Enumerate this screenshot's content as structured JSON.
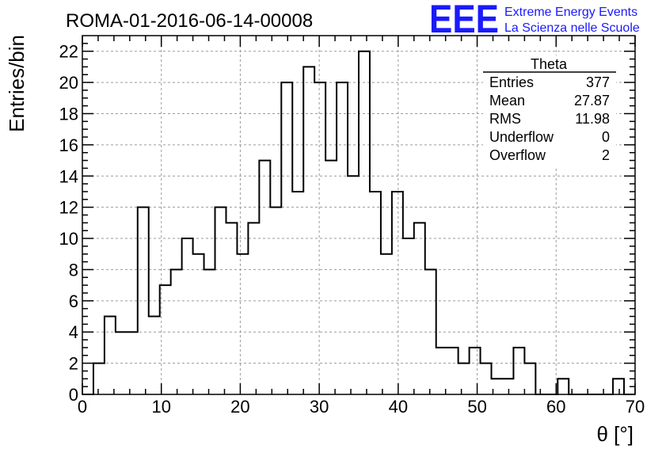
{
  "chart_data": {
    "type": "bar",
    "title": "ROMA-01-2016-06-14-00008",
    "xlabel": "θ [°]",
    "ylabel": "Entries/bin",
    "xlim": [
      0,
      70
    ],
    "ylim": [
      0,
      23
    ],
    "grid": true,
    "bin_width": 1.4,
    "x_ticks": [
      0,
      10,
      20,
      30,
      40,
      50,
      60,
      70
    ],
    "y_ticks": [
      0,
      2,
      4,
      6,
      8,
      10,
      12,
      14,
      16,
      18,
      20,
      22
    ],
    "values": [
      0,
      2,
      5,
      4,
      4,
      12,
      5,
      7,
      8,
      10,
      9,
      8,
      12,
      11,
      9,
      11,
      15,
      12,
      20,
      13,
      21,
      20,
      15,
      20,
      14,
      22,
      13,
      9,
      13,
      10,
      11,
      8,
      3,
      3,
      2,
      3,
      2,
      1,
      1,
      3,
      2,
      0,
      0,
      1,
      0,
      0,
      0,
      0,
      1,
      0
    ],
    "stats_box": {
      "title": "Theta",
      "rows": [
        {
          "label": "Entries",
          "value": "377"
        },
        {
          "label": "Mean",
          "value": "27.87"
        },
        {
          "label": "RMS",
          "value": "11.98"
        },
        {
          "label": "Underflow",
          "value": "0"
        },
        {
          "label": "Overflow",
          "value": "2"
        }
      ]
    },
    "logo": {
      "mark": "EEE",
      "line1": "Extreme Energy Events",
      "line2": "La Scienza nelle Scuole",
      "color": "#1a1aff"
    }
  }
}
